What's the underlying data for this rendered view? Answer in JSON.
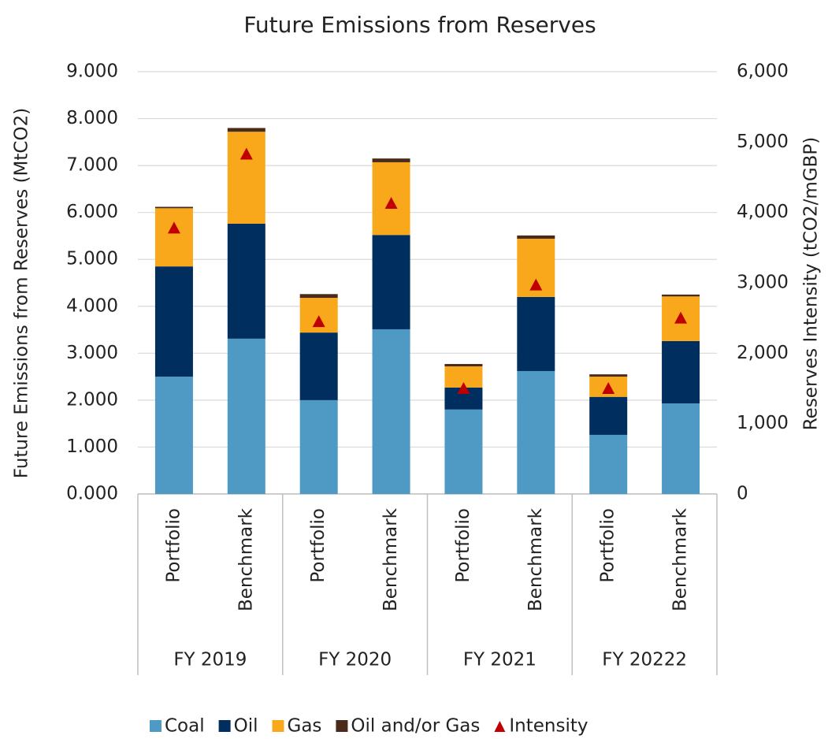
{
  "chart_data": {
    "type": "bar",
    "stacked": true,
    "title": "Future Emissions from Reserves",
    "y_label": "Future Emissions from Reserves (MtCO2)",
    "y2_label": "Reserves Intensity (tCO2/mGBP)",
    "categories": [
      "Portfolio",
      "Benchmark",
      "Portfolio",
      "Benchmark",
      "Portfolio",
      "Benchmark",
      "Portfolio",
      "Benchmark"
    ],
    "groups": [
      "FY 2019",
      "FY 2020",
      "FY 2021",
      "FY 20222"
    ],
    "series": [
      {
        "name": "Coal",
        "color": "#4e9ac4",
        "values": [
          2.5,
          3.31,
          2.0,
          3.51,
          1.8,
          2.62,
          1.26,
          1.93
        ]
      },
      {
        "name": "Oil",
        "color": "#002e5e",
        "values": [
          2.35,
          2.45,
          1.44,
          2.01,
          0.47,
          1.58,
          0.81,
          1.33
        ]
      },
      {
        "name": "Gas",
        "color": "#f9a81c",
        "values": [
          1.24,
          1.96,
          0.74,
          1.55,
          0.45,
          1.24,
          0.43,
          0.95
        ]
      },
      {
        "name": "Oil and/or Gas",
        "color": "#4a2a18",
        "values": [
          0.03,
          0.08,
          0.08,
          0.08,
          0.05,
          0.07,
          0.05,
          0.04
        ]
      },
      {
        "name": "Intensity",
        "color": "#c00000",
        "axis": "y2",
        "marker": "triangle",
        "values": [
          3780,
          4830,
          2450,
          4130,
          1500,
          2970,
          1500,
          2500
        ]
      }
    ],
    "ylim": [
      0,
      9
    ],
    "yticks": [
      {
        "value": 0,
        "label": "0.000"
      },
      {
        "value": 1,
        "label": "1.000"
      },
      {
        "value": 2,
        "label": "2.000"
      },
      {
        "value": 3,
        "label": "3.000"
      },
      {
        "value": 4,
        "label": "4.000"
      },
      {
        "value": 5,
        "label": "5.000"
      },
      {
        "value": 6,
        "label": "6.000"
      },
      {
        "value": 7,
        "label": "7.000"
      },
      {
        "value": 8,
        "label": "8.000"
      },
      {
        "value": 9,
        "label": "9.000"
      }
    ],
    "y2lim": [
      0,
      6000
    ],
    "y2ticks": [
      0,
      {
        "value": 1000,
        "label": "1,000"
      },
      {
        "value": 2000,
        "label": "2,000"
      },
      {
        "value": 3000,
        "label": "3,000"
      },
      {
        "value": 4000,
        "label": "4,000"
      },
      {
        "value": 5000,
        "label": "5,000"
      },
      {
        "value": 6000,
        "label": "6,000"
      }
    ],
    "grid": true,
    "legend": "bottom"
  }
}
